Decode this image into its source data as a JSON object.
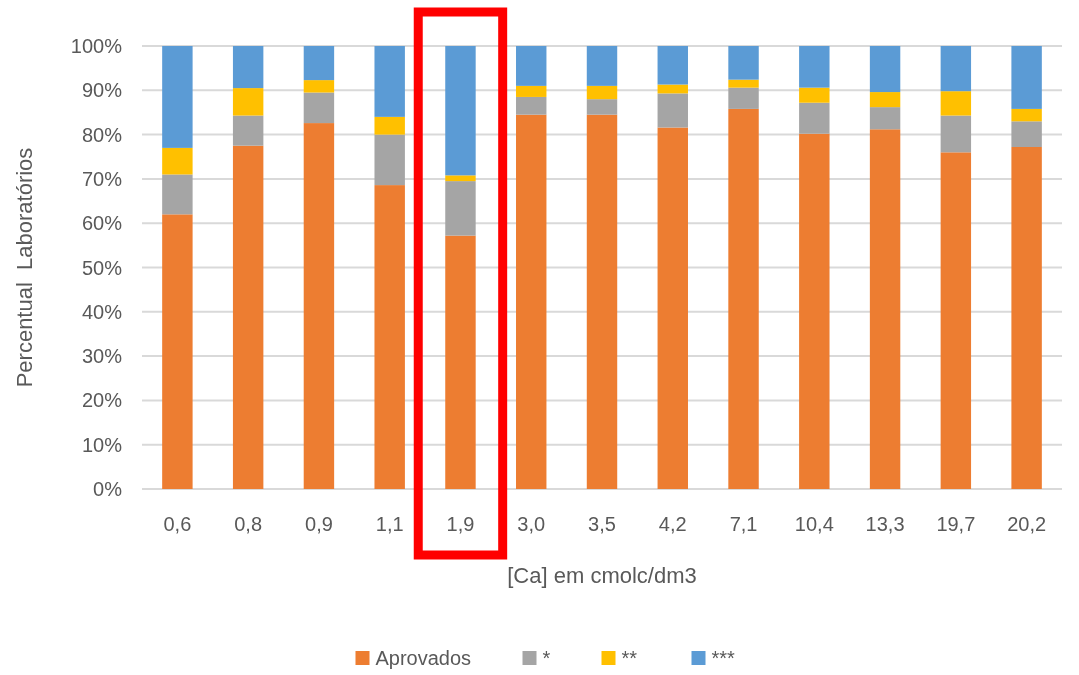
{
  "chart_data": {
    "type": "bar",
    "stacked": true,
    "xlabel": "[Ca] em cmolc/dm3",
    "ylabel": "Percentual  Laboratórios",
    "categories": [
      "0,6",
      "0,8",
      "0,9",
      "1,1",
      "1,9",
      "3,0",
      "3,5",
      "4,2",
      "7,1",
      "10,4",
      "13,3",
      "19,7",
      "20,2"
    ],
    "series": [
      {
        "name": "Aprovados",
        "color": "#ed7d31",
        "values": [
          62,
          77.5,
          82.6,
          68.6,
          57.2,
          84.5,
          84.5,
          81.6,
          85.8,
          80.2,
          81.2,
          76,
          77.2
        ]
      },
      {
        "name": "*",
        "color": "#a5a5a5",
        "values": [
          9,
          6.8,
          6.9,
          11.4,
          12.3,
          4,
          3.5,
          7.7,
          4.8,
          7,
          5,
          8.3,
          5.8
        ]
      },
      {
        "name": "**",
        "color": "#ffc000",
        "values": [
          6,
          6.2,
          2.8,
          4,
          1.3,
          2.5,
          3,
          2,
          1.8,
          3.4,
          3.4,
          5.5,
          2.8
        ]
      },
      {
        "name": "***",
        "color": "#5b9bd5",
        "values": [
          23,
          9.5,
          7.7,
          16,
          29.2,
          9,
          9,
          8.7,
          7.6,
          9.4,
          10.4,
          10.2,
          14.2
        ]
      }
    ],
    "ylim": [
      0,
      100
    ],
    "yticks": [
      {
        "value": 0,
        "label": "0%"
      },
      {
        "value": 10,
        "label": "10%"
      },
      {
        "value": 20,
        "label": "20%"
      },
      {
        "value": 30,
        "label": "30%"
      },
      {
        "value": 40,
        "label": "40%"
      },
      {
        "value": 50,
        "label": "50%"
      },
      {
        "value": 60,
        "label": "60%"
      },
      {
        "value": 70,
        "label": "70%"
      },
      {
        "value": 80,
        "label": "80%"
      },
      {
        "value": 90,
        "label": "90%"
      },
      {
        "value": 100,
        "label": "100%"
      }
    ],
    "grid": "y",
    "legend": "bottom"
  }
}
